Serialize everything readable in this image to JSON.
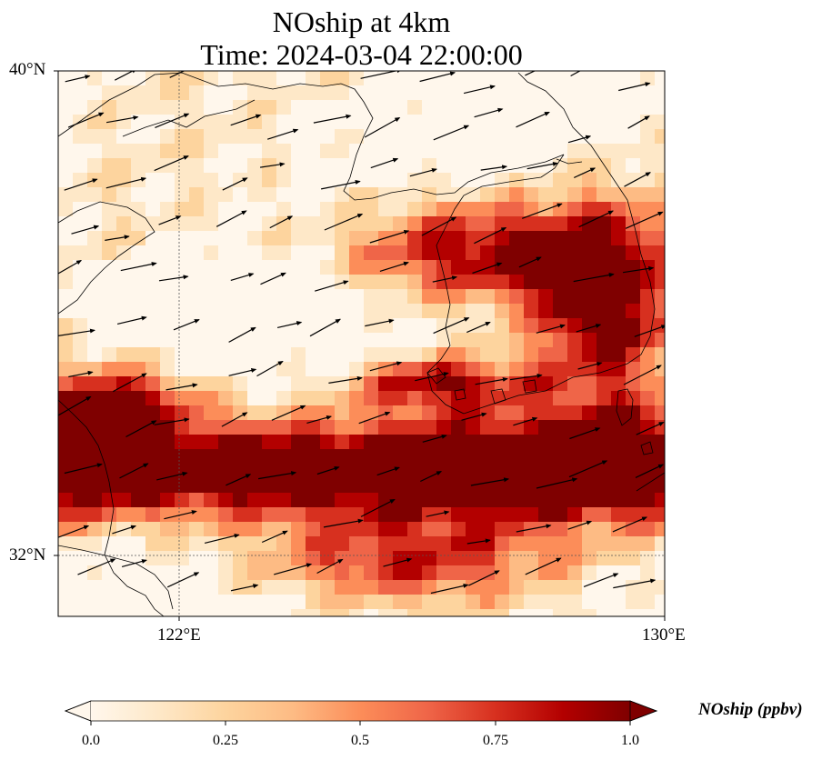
{
  "title": {
    "line1": "NOship at 4km",
    "line2": "Time: 2024-03-04 22:00:00"
  },
  "map": {
    "extent": {
      "lon": [
        120,
        130
      ],
      "lat": [
        31,
        40
      ]
    },
    "lat_ticks": [
      {
        "value": 40,
        "label": "40°N"
      },
      {
        "value": 32,
        "label": "32°N"
      }
    ],
    "lon_ticks": [
      {
        "value": 122,
        "label": "122°E"
      },
      {
        "value": 130,
        "label": "130°E"
      }
    ],
    "gridlines": [
      {
        "lon": 122
      },
      {
        "lat": 32
      }
    ],
    "field": "NOship",
    "colormap": "OrRd",
    "vectors": "wind arrows (mostly westerly, pointing east-northeast)"
  },
  "colorbar": {
    "label": "NOship (ppbv)",
    "range": [
      0.0,
      1.0
    ],
    "extend": "both",
    "ticks": [
      "0.0",
      "0.25",
      "0.5",
      "0.75",
      "1.0"
    ],
    "colors": [
      "#fff7ec",
      "#fee8c8",
      "#fdd49e",
      "#fdbb84",
      "#fc8d59",
      "#ef6548",
      "#d7301f",
      "#b30000",
      "#7f0000"
    ]
  }
}
